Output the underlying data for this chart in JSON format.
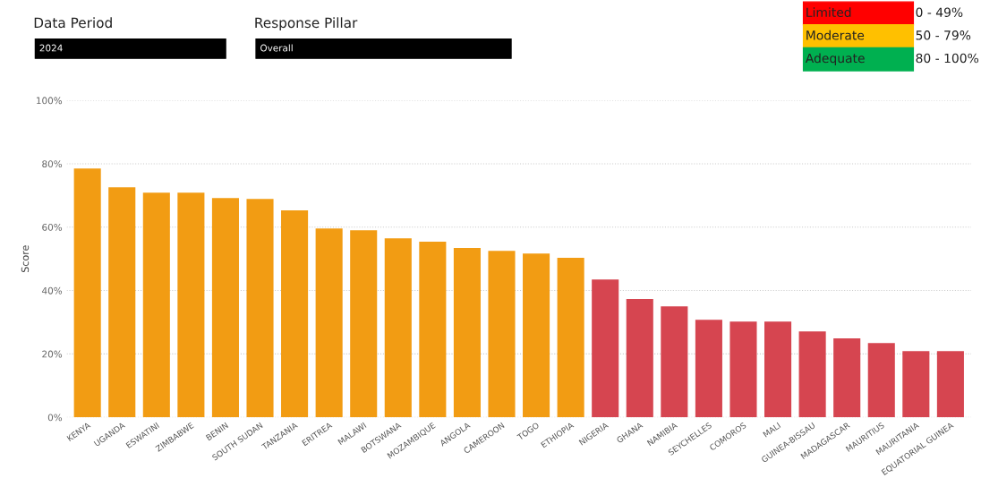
{
  "chart_data": {
    "type": "bar",
    "ylabel": "Score",
    "categories": [
      "KENYA",
      "UGANDA",
      "ESWATINI",
      "ZIMBABWE",
      "BENIN",
      "SOUTH SUDAN",
      "TANZANIA",
      "ERITREA",
      "MALAWI",
      "BOTSWANA",
      "MOZAMBIQUE",
      "ANGOLA",
      "CAMEROON",
      "TOGO",
      "ETHIOPIA",
      "NIGERIA",
      "GHANA",
      "NAMIBIA",
      "SEYCHELLES",
      "COMOROS",
      "MALI",
      "GUINEA-BISSAU",
      "MADAGASCAR",
      "MAURITIUS",
      "MAURITANIA",
      "EQUATORIAL GUINEA"
    ],
    "values": [
      78.5,
      72.6,
      70.9,
      70.9,
      69.2,
      68.9,
      65.3,
      59.6,
      59.0,
      56.5,
      55.4,
      53.4,
      52.5,
      51.7,
      50.3,
      43.5,
      37.3,
      35.0,
      30.8,
      30.2,
      30.2,
      27.1,
      24.9,
      23.4,
      20.9,
      20.9
    ],
    "colors": [
      "#f29c13",
      "#f29c13",
      "#f29c13",
      "#f29c13",
      "#f29c13",
      "#f29c13",
      "#f29c13",
      "#f29c13",
      "#f29c13",
      "#f29c13",
      "#f29c13",
      "#f29c13",
      "#f29c13",
      "#f29c13",
      "#f29c13",
      "#d64550",
      "#d64550",
      "#d64550",
      "#d64550",
      "#d64550",
      "#d64550",
      "#d64550",
      "#d64550",
      "#d64550",
      "#d64550",
      "#d64550"
    ],
    "ylim": [
      0,
      100
    ],
    "yticks": [
      {
        "value": 0,
        "label": "0%"
      },
      {
        "value": 20,
        "label": "20%"
      },
      {
        "value": 40,
        "label": "40%"
      },
      {
        "value": 60,
        "label": "60%"
      },
      {
        "value": 80,
        "label": "80%"
      },
      {
        "value": 100,
        "label": "100%"
      }
    ],
    "grid": "y",
    "annotations": [
      "Data Period",
      "2024",
      "Response Pillar",
      "Overall",
      "Limited",
      "0 - 49%",
      "Moderate",
      "50 - 79%",
      "Adequate",
      "80 - 100%"
    ]
  }
}
